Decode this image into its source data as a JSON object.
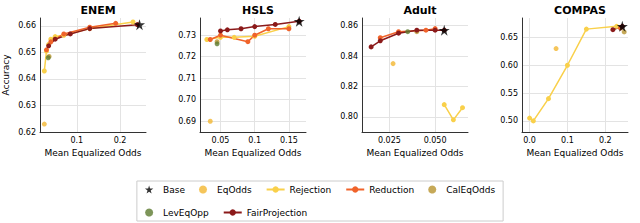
{
  "chart_data": [
    {
      "type": "line",
      "title": "ENEM",
      "x_label": "Mean Equalized Odds",
      "y_label": "Accuracy",
      "xlim": [
        0.015,
        0.26
      ],
      "ylim": [
        0.62,
        0.663
      ],
      "xticks": [
        0.1,
        0.2
      ],
      "yticks": [
        0.62,
        0.63,
        0.64,
        0.65,
        0.66
      ],
      "grid": true,
      "legend": "bottom",
      "series": [
        {
          "name": "Base",
          "color": "#000000",
          "marker": "star",
          "line_style": "none",
          "x": [
            0.245
          ],
          "values": [
            0.6605
          ]
        },
        {
          "name": "EqOdds",
          "color": "#f2b631",
          "marker": "circle",
          "line_style": "none",
          "x": [
            0.025
          ],
          "values": [
            0.623
          ]
        },
        {
          "name": "Rejection",
          "color": "#f9d04a",
          "marker": "circle",
          "line_style": "solid",
          "x": [
            0.025,
            0.03,
            0.035,
            0.04,
            0.05,
            0.07,
            0.13,
            0.23
          ],
          "values": [
            0.643,
            0.6505,
            0.653,
            0.655,
            0.656,
            0.6565,
            0.659,
            0.6615
          ]
        },
        {
          "name": "Reduction",
          "color": "#f0632a",
          "marker": "circle",
          "line_style": "solid",
          "x": [
            0.03,
            0.04,
            0.07,
            0.13,
            0.19
          ],
          "values": [
            0.651,
            0.654,
            0.657,
            0.6595,
            0.661
          ]
        },
        {
          "name": "CalEqOdds",
          "color": "#b8932e",
          "marker": "circle",
          "line_style": "none",
          "x": [
            0.036
          ],
          "values": [
            0.6485
          ]
        },
        {
          "name": "LevEqOpp",
          "color": "#5d7a30",
          "marker": "circle",
          "line_style": "none",
          "x": [
            0.034
          ],
          "values": [
            0.648
          ]
        },
        {
          "name": "FairProjection",
          "color": "#8b1a1a",
          "marker": "circle",
          "line_style": "solid",
          "x": [
            0.035,
            0.05,
            0.085,
            0.13,
            0.24
          ],
          "values": [
            0.6525,
            0.655,
            0.657,
            0.659,
            0.6605
          ]
        }
      ]
    },
    {
      "type": "line",
      "title": "HSLS",
      "x_label": "Mean Equalized Odds",
      "xlim": [
        0.02,
        0.175
      ],
      "ylim": [
        0.685,
        0.738
      ],
      "xticks": [
        0.05,
        0.1,
        0.15
      ],
      "yticks": [
        0.69,
        {
          "value": 0.7,
          "label": "0.70"
        },
        0.71,
        0.72,
        0.73
      ],
      "grid": true,
      "legend": "bottom",
      "series": [
        {
          "name": "Base",
          "color": "#000000",
          "marker": "star",
          "line_style": "none",
          "x": [
            0.165
          ],
          "values": [
            0.7365
          ]
        },
        {
          "name": "EqOdds",
          "color": "#f2b631",
          "marker": "circle",
          "line_style": "none",
          "x": [
            0.035
          ],
          "values": [
            0.69
          ]
        },
        {
          "name": "Rejection",
          "color": "#f9d04a",
          "marker": "circle",
          "line_style": "solid",
          "x": [
            0.03,
            0.05,
            0.07,
            0.1,
            0.15
          ],
          "values": [
            0.728,
            0.729,
            0.729,
            0.7295,
            0.734
          ]
        },
        {
          "name": "Reduction",
          "color": "#f0632a",
          "marker": "circle",
          "line_style": "solid",
          "x": [
            0.035,
            0.05,
            0.09,
            0.1,
            0.12,
            0.15
          ],
          "values": [
            0.728,
            0.73,
            0.727,
            0.73,
            0.733,
            0.733
          ]
        },
        {
          "name": "CalEqOdds",
          "color": "#b8932e",
          "marker": "circle",
          "line_style": "none",
          "x": [
            0.045
          ],
          "values": [
            0.727
          ]
        },
        {
          "name": "LevEqOpp",
          "color": "#5d7a30",
          "marker": "circle",
          "line_style": "none",
          "x": [
            0.045
          ],
          "values": [
            0.726
          ]
        },
        {
          "name": "FairProjection",
          "color": "#8b1a1a",
          "marker": "circle",
          "line_style": "solid",
          "x": [
            0.05,
            0.06,
            0.08,
            0.1,
            0.13,
            0.165
          ],
          "values": [
            0.732,
            0.7325,
            0.733,
            0.734,
            0.735,
            0.7365
          ]
        }
      ]
    },
    {
      "type": "line",
      "title": "Adult",
      "x_label": "Mean Equalized Odds",
      "xlim": [
        0.01,
        0.068
      ],
      "ylim": [
        0.79,
        0.865
      ],
      "xticks": [
        0.025,
        {
          "value": 0.05,
          "label": "0.050"
        }
      ],
      "yticks": [
        {
          "value": 0.8,
          "label": "0.80"
        },
        0.82,
        0.84,
        0.86
      ],
      "grid": true,
      "legend": "bottom",
      "series": [
        {
          "name": "Base",
          "color": "#000000",
          "marker": "star",
          "line_style": "none",
          "x": [
            0.055
          ],
          "values": [
            0.857
          ]
        },
        {
          "name": "EqOdds",
          "color": "#f2b631",
          "marker": "circle",
          "line_style": "none",
          "x": [
            0.027
          ],
          "values": [
            0.835
          ]
        },
        {
          "name": "Rejection",
          "color": "#f9d04a",
          "marker": "circle",
          "line_style": "solid",
          "x": [
            0.055,
            0.06,
            0.065
          ],
          "values": [
            0.808,
            0.798,
            0.806
          ]
        },
        {
          "name": "Reduction",
          "color": "#f0632a",
          "marker": "circle",
          "line_style": "solid",
          "x": [
            0.02,
            0.03,
            0.045,
            0.05
          ],
          "values": [
            0.852,
            0.856,
            0.857,
            0.858
          ]
        },
        {
          "name": "CalEqOdds",
          "color": "#b8932e",
          "marker": "circle",
          "line_style": "none",
          "x": [
            0.04
          ],
          "values": [
            0.856
          ]
        },
        {
          "name": "LevEqOpp",
          "color": "#5d7a30",
          "marker": "circle",
          "line_style": "none",
          "x": [
            0.035
          ],
          "values": [
            0.856
          ]
        },
        {
          "name": "FairProjection",
          "color": "#8b1a1a",
          "marker": "circle",
          "line_style": "solid",
          "x": [
            0.015,
            0.02,
            0.03,
            0.04,
            0.05,
            0.055
          ],
          "values": [
            0.846,
            0.85,
            0.855,
            0.857,
            0.857,
            0.857
          ]
        }
      ]
    },
    {
      "type": "line",
      "title": "COMPAS",
      "x_label": "Mean Equalized Odds",
      "xlim": [
        -0.02,
        0.26
      ],
      "ylim": [
        0.48,
        0.685
      ],
      "xticks": [
        {
          "value": 0,
          "label": "0.0"
        },
        0.1,
        0.2
      ],
      "yticks": [
        {
          "value": 0.5,
          "label": "0.50"
        },
        0.55,
        {
          "value": 0.6,
          "label": "0.60"
        },
        0.65
      ],
      "grid": true,
      "legend": "bottom",
      "series": [
        {
          "name": "Base",
          "color": "#000000",
          "marker": "star",
          "line_style": "none",
          "x": [
            0.245
          ],
          "values": [
            0.67
          ]
        },
        {
          "name": "EqOdds",
          "color": "#f2b631",
          "marker": "circle",
          "line_style": "none",
          "x": [
            0.07
          ],
          "values": [
            0.63
          ]
        },
        {
          "name": "Rejection",
          "color": "#f9d04a",
          "marker": "circle",
          "line_style": "solid",
          "x": [
            0.0,
            0.01,
            0.05,
            0.1,
            0.15,
            0.23
          ],
          "values": [
            0.505,
            0.5,
            0.54,
            0.6,
            0.665,
            0.67
          ]
        },
        {
          "name": "Reduction",
          "color": "#f0632a",
          "marker": "circle",
          "line_style": "solid",
          "x": [
            0.24
          ],
          "values": [
            0.667
          ]
        },
        {
          "name": "CalEqOdds",
          "color": "#b8932e",
          "marker": "circle",
          "line_style": "none",
          "x": [
            0.25
          ],
          "values": [
            0.66
          ]
        },
        {
          "name": "FairProjection",
          "color": "#8b1a1a",
          "marker": "circle",
          "line_style": "solid",
          "x": [
            0.22,
            0.245
          ],
          "values": [
            0.664,
            0.67
          ]
        }
      ]
    }
  ]
}
